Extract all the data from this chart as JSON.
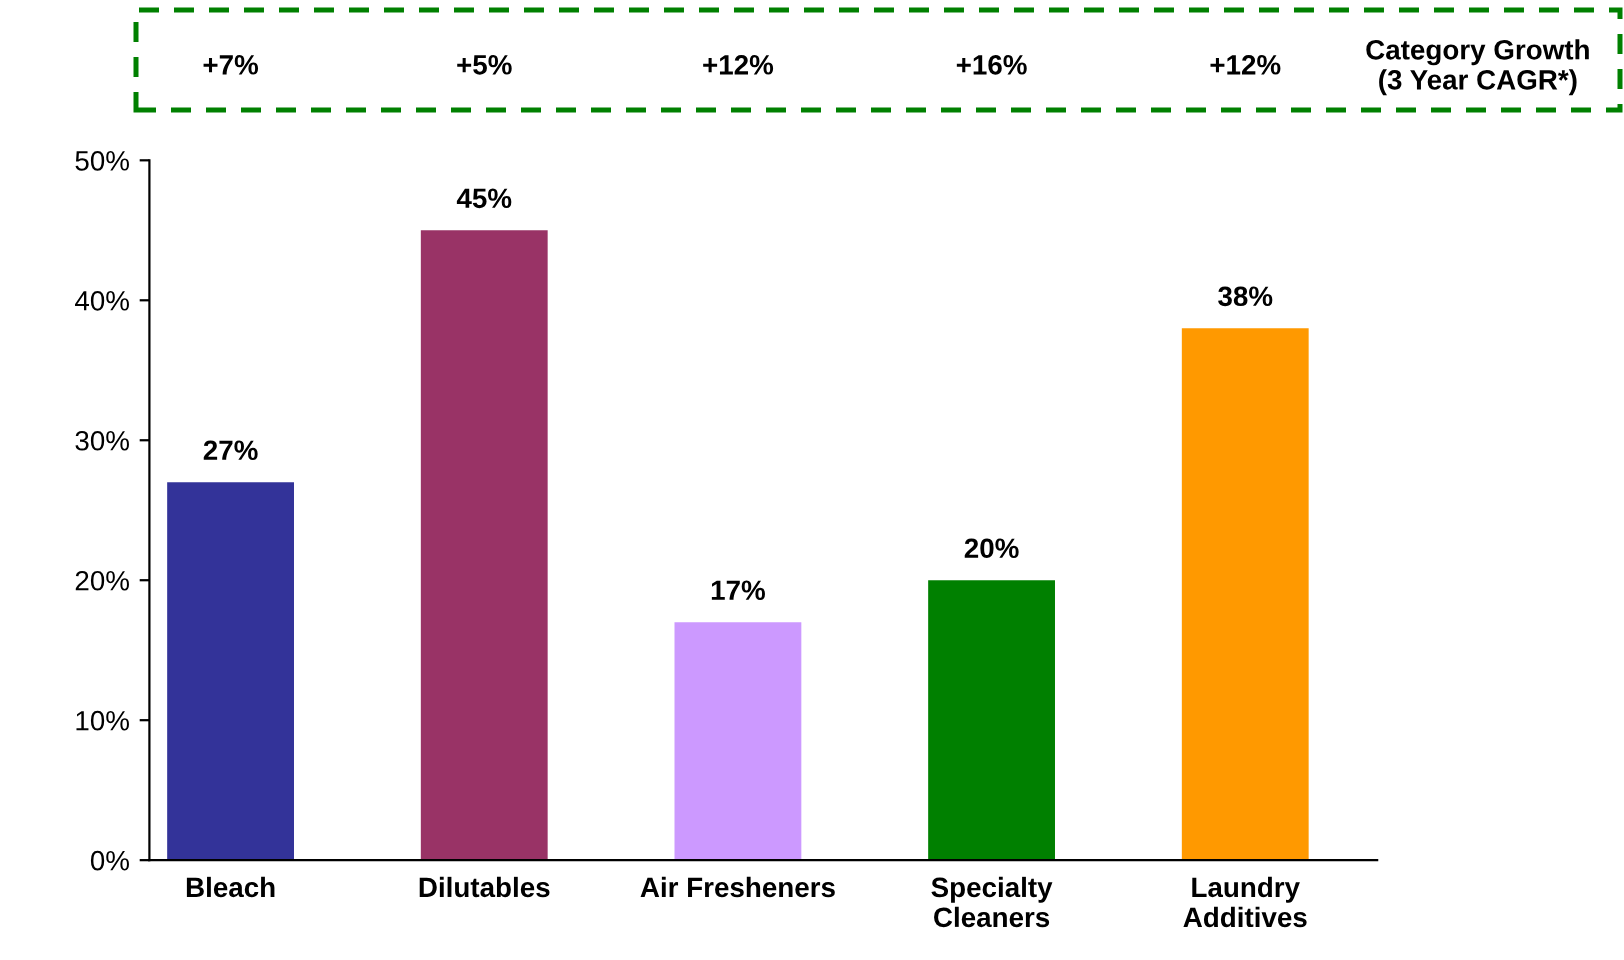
{
  "chart_data": {
    "type": "bar",
    "categories": [
      "Bleach",
      "Dilutables",
      "Air Fresheners",
      "Specialty\nCleaners",
      "Laundry\nAdditives"
    ],
    "values": [
      27,
      45,
      17,
      20,
      38
    ],
    "colors": [
      "#333399",
      "#993366",
      "#cc99ff",
      "#008000",
      "#ff9900"
    ],
    "value_labels": [
      "27%",
      "45%",
      "17%",
      "20%",
      "38%"
    ],
    "ylim": [
      0,
      50
    ],
    "yticks": [
      {
        "value": 0,
        "label": "0%"
      },
      {
        "value": 10,
        "label": "10%"
      },
      {
        "value": 20,
        "label": "20%"
      },
      {
        "value": 30,
        "label": "30%"
      },
      {
        "value": 40,
        "label": "40%"
      },
      {
        "value": 50,
        "label": "50%"
      }
    ],
    "grid": false,
    "annotations": [
      "+7%",
      "+5%",
      "+12%",
      "+16%",
      "+12%",
      "Category Growth\n(3 Year CAGR*)"
    ]
  }
}
